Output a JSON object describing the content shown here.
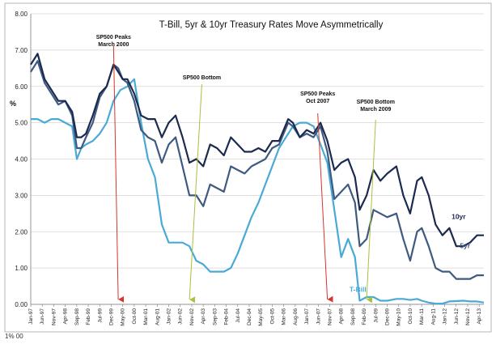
{
  "chart_data": {
    "type": "line",
    "title": "T-Bill, 5yr & 10yr Treasury Rates Move Asymmetrically",
    "ylabel": "%",
    "xlabel": "",
    "ylim": [
      0,
      8
    ],
    "xlim": [
      1997.0,
      2013.42
    ],
    "y_ticks": [
      "0.00",
      "1.00",
      "2.00",
      "3.00",
      "4.00",
      "5.00",
      "6.00",
      "7.00",
      "8.00"
    ],
    "x_ticks": [
      "Jan-97",
      "Jun-97",
      "Nov-97",
      "Apr-98",
      "Sep-98",
      "Feb-99",
      "Jul-99",
      "Dec-99",
      "May-00",
      "Oct-00",
      "Mar-01",
      "Aug-01",
      "Jan-02",
      "Jun-02",
      "Nov-02",
      "Apr-03",
      "Sep-03",
      "Feb-04",
      "Jul-04",
      "Dec-04",
      "May-05",
      "Oct-05",
      "Mar-06",
      "Aug-06",
      "Jan-07",
      "Jun-07",
      "Nov-07",
      "Apr-08",
      "Sep-08",
      "Feb-09",
      "Jul-09",
      "Dec-09",
      "May-10",
      "Oct-10",
      "Mar-11",
      "Aug-11",
      "Jan-12",
      "Jun-12",
      "Nov-12",
      "Apr-13"
    ],
    "series": [
      {
        "name": "10yr",
        "color": "#1b2a4e",
        "points": [
          [
            1997.0,
            6.6
          ],
          [
            1997.25,
            6.9
          ],
          [
            1997.5,
            6.2
          ],
          [
            1997.75,
            5.9
          ],
          [
            1998.0,
            5.6
          ],
          [
            1998.25,
            5.6
          ],
          [
            1998.5,
            5.3
          ],
          [
            1998.67,
            4.6
          ],
          [
            1998.83,
            4.6
          ],
          [
            1999.0,
            4.7
          ],
          [
            1999.25,
            5.2
          ],
          [
            1999.5,
            5.8
          ],
          [
            1999.75,
            6.0
          ],
          [
            2000.0,
            6.6
          ],
          [
            2000.17,
            6.4
          ],
          [
            2000.33,
            6.2
          ],
          [
            2000.5,
            6.2
          ],
          [
            2000.75,
            5.8
          ],
          [
            2001.0,
            5.2
          ],
          [
            2001.25,
            5.1
          ],
          [
            2001.5,
            5.1
          ],
          [
            2001.75,
            4.6
          ],
          [
            2002.0,
            5.0
          ],
          [
            2002.25,
            5.2
          ],
          [
            2002.5,
            4.6
          ],
          [
            2002.75,
            3.9
          ],
          [
            2003.0,
            4.0
          ],
          [
            2003.25,
            3.8
          ],
          [
            2003.5,
            4.4
          ],
          [
            2003.75,
            4.3
          ],
          [
            2004.0,
            4.1
          ],
          [
            2004.25,
            4.6
          ],
          [
            2004.5,
            4.4
          ],
          [
            2004.75,
            4.2
          ],
          [
            2005.0,
            4.2
          ],
          [
            2005.25,
            4.3
          ],
          [
            2005.5,
            4.2
          ],
          [
            2005.75,
            4.5
          ],
          [
            2006.0,
            4.5
          ],
          [
            2006.33,
            5.1
          ],
          [
            2006.5,
            5.0
          ],
          [
            2006.75,
            4.6
          ],
          [
            2007.0,
            4.8
          ],
          [
            2007.25,
            4.7
          ],
          [
            2007.5,
            5.0
          ],
          [
            2007.75,
            4.5
          ],
          [
            2008.0,
            3.7
          ],
          [
            2008.25,
            3.9
          ],
          [
            2008.5,
            4.0
          ],
          [
            2008.75,
            3.5
          ],
          [
            2008.92,
            2.6
          ],
          [
            2009.17,
            3.0
          ],
          [
            2009.42,
            3.7
          ],
          [
            2009.67,
            3.4
          ],
          [
            2009.92,
            3.6
          ],
          [
            2010.25,
            3.8
          ],
          [
            2010.5,
            3.0
          ],
          [
            2010.75,
            2.5
          ],
          [
            2011.0,
            3.4
          ],
          [
            2011.17,
            3.5
          ],
          [
            2011.42,
            3.0
          ],
          [
            2011.67,
            2.2
          ],
          [
            2011.92,
            1.9
          ],
          [
            2012.17,
            2.1
          ],
          [
            2012.42,
            1.6
          ],
          [
            2012.67,
            1.6
          ],
          [
            2012.92,
            1.7
          ],
          [
            2013.17,
            1.9
          ],
          [
            2013.42,
            1.9
          ]
        ]
      },
      {
        "name": "5yr",
        "color": "#3f5a80",
        "points": [
          [
            1997.0,
            6.4
          ],
          [
            1997.25,
            6.7
          ],
          [
            1997.5,
            6.1
          ],
          [
            1997.75,
            5.8
          ],
          [
            1998.0,
            5.5
          ],
          [
            1998.25,
            5.6
          ],
          [
            1998.5,
            5.2
          ],
          [
            1998.67,
            4.3
          ],
          [
            1998.83,
            4.3
          ],
          [
            1999.0,
            4.6
          ],
          [
            1999.25,
            5.0
          ],
          [
            1999.5,
            5.7
          ],
          [
            1999.75,
            6.0
          ],
          [
            2000.0,
            6.6
          ],
          [
            2000.17,
            6.5
          ],
          [
            2000.33,
            6.2
          ],
          [
            2000.5,
            6.1
          ],
          [
            2000.75,
            5.6
          ],
          [
            2001.0,
            4.8
          ],
          [
            2001.25,
            4.6
          ],
          [
            2001.5,
            4.5
          ],
          [
            2001.75,
            3.9
          ],
          [
            2002.0,
            4.4
          ],
          [
            2002.25,
            4.6
          ],
          [
            2002.5,
            3.8
          ],
          [
            2002.75,
            3.0
          ],
          [
            2003.0,
            3.0
          ],
          [
            2003.25,
            2.7
          ],
          [
            2003.5,
            3.3
          ],
          [
            2003.75,
            3.2
          ],
          [
            2004.0,
            3.1
          ],
          [
            2004.25,
            3.8
          ],
          [
            2004.5,
            3.7
          ],
          [
            2004.75,
            3.6
          ],
          [
            2005.0,
            3.8
          ],
          [
            2005.25,
            3.9
          ],
          [
            2005.5,
            4.0
          ],
          [
            2005.75,
            4.3
          ],
          [
            2006.0,
            4.4
          ],
          [
            2006.33,
            5.0
          ],
          [
            2006.5,
            4.9
          ],
          [
            2006.75,
            4.6
          ],
          [
            2007.0,
            4.7
          ],
          [
            2007.25,
            4.6
          ],
          [
            2007.5,
            4.9
          ],
          [
            2007.75,
            4.2
          ],
          [
            2008.0,
            2.9
          ],
          [
            2008.25,
            3.1
          ],
          [
            2008.5,
            3.3
          ],
          [
            2008.75,
            2.8
          ],
          [
            2008.92,
            1.6
          ],
          [
            2009.17,
            1.8
          ],
          [
            2009.42,
            2.6
          ],
          [
            2009.67,
            2.5
          ],
          [
            2009.92,
            2.4
          ],
          [
            2010.25,
            2.5
          ],
          [
            2010.5,
            1.8
          ],
          [
            2010.75,
            1.2
          ],
          [
            2011.0,
            2.0
          ],
          [
            2011.17,
            2.1
          ],
          [
            2011.42,
            1.6
          ],
          [
            2011.67,
            1.0
          ],
          [
            2011.92,
            0.9
          ],
          [
            2012.17,
            0.9
          ],
          [
            2012.42,
            0.7
          ],
          [
            2012.67,
            0.7
          ],
          [
            2012.92,
            0.7
          ],
          [
            2013.17,
            0.8
          ],
          [
            2013.42,
            0.8
          ]
        ]
      },
      {
        "name": "T-Bill",
        "color": "#4aaad6",
        "points": [
          [
            1997.0,
            5.1
          ],
          [
            1997.25,
            5.1
          ],
          [
            1997.5,
            5.0
          ],
          [
            1997.75,
            5.1
          ],
          [
            1998.0,
            5.1
          ],
          [
            1998.25,
            5.0
          ],
          [
            1998.5,
            4.9
          ],
          [
            1998.67,
            4.0
          ],
          [
            1998.83,
            4.3
          ],
          [
            1999.0,
            4.4
          ],
          [
            1999.25,
            4.5
          ],
          [
            1999.5,
            4.7
          ],
          [
            1999.75,
            5.0
          ],
          [
            2000.0,
            5.6
          ],
          [
            2000.25,
            5.9
          ],
          [
            2000.5,
            6.0
          ],
          [
            2000.75,
            6.2
          ],
          [
            2001.0,
            5.0
          ],
          [
            2001.25,
            4.0
          ],
          [
            2001.5,
            3.5
          ],
          [
            2001.75,
            2.2
          ],
          [
            2002.0,
            1.7
          ],
          [
            2002.25,
            1.7
          ],
          [
            2002.5,
            1.7
          ],
          [
            2002.75,
            1.6
          ],
          [
            2003.0,
            1.2
          ],
          [
            2003.25,
            1.1
          ],
          [
            2003.5,
            0.9
          ],
          [
            2003.75,
            0.9
          ],
          [
            2004.0,
            0.9
          ],
          [
            2004.25,
            1.0
          ],
          [
            2004.5,
            1.4
          ],
          [
            2004.75,
            1.9
          ],
          [
            2005.0,
            2.4
          ],
          [
            2005.25,
            2.8
          ],
          [
            2005.5,
            3.3
          ],
          [
            2005.75,
            3.8
          ],
          [
            2006.0,
            4.3
          ],
          [
            2006.33,
            4.7
          ],
          [
            2006.5,
            4.9
          ],
          [
            2006.75,
            5.0
          ],
          [
            2007.0,
            5.0
          ],
          [
            2007.25,
            4.9
          ],
          [
            2007.5,
            4.4
          ],
          [
            2007.75,
            3.9
          ],
          [
            2008.0,
            2.6
          ],
          [
            2008.25,
            1.3
          ],
          [
            2008.5,
            1.8
          ],
          [
            2008.75,
            1.3
          ],
          [
            2008.92,
            0.1
          ],
          [
            2009.17,
            0.2
          ],
          [
            2009.42,
            0.2
          ],
          [
            2009.67,
            0.1
          ],
          [
            2009.92,
            0.1
          ],
          [
            2010.25,
            0.15
          ],
          [
            2010.5,
            0.15
          ],
          [
            2010.75,
            0.12
          ],
          [
            2011.0,
            0.15
          ],
          [
            2011.17,
            0.1
          ],
          [
            2011.42,
            0.05
          ],
          [
            2011.67,
            0.02
          ],
          [
            2011.92,
            0.02
          ],
          [
            2012.17,
            0.08
          ],
          [
            2012.42,
            0.09
          ],
          [
            2012.67,
            0.1
          ],
          [
            2012.92,
            0.08
          ],
          [
            2013.17,
            0.08
          ],
          [
            2013.42,
            0.05
          ]
        ]
      }
    ],
    "annotations": [
      {
        "id": "sp500-peak-2000",
        "lines": [
          "SP500 Peaks",
          "March 2000"
        ],
        "x": 2000.17,
        "color": "#d8332d"
      },
      {
        "id": "sp500-bottom-2002",
        "lines": [
          "SP500 Bottom"
        ],
        "x": 2002.75,
        "color": "#a9c13c"
      },
      {
        "id": "sp500-peak-2007",
        "lines": [
          "SP500 Peaks",
          "Oct 2007"
        ],
        "x": 2007.75,
        "color": "#d8332d"
      },
      {
        "id": "sp500-bottom-2009",
        "lines": [
          "SP500 Bottom",
          "March 2009"
        ],
        "x": 2009.17,
        "color": "#a9c13c"
      }
    ],
    "footer_text": "1% 00"
  }
}
